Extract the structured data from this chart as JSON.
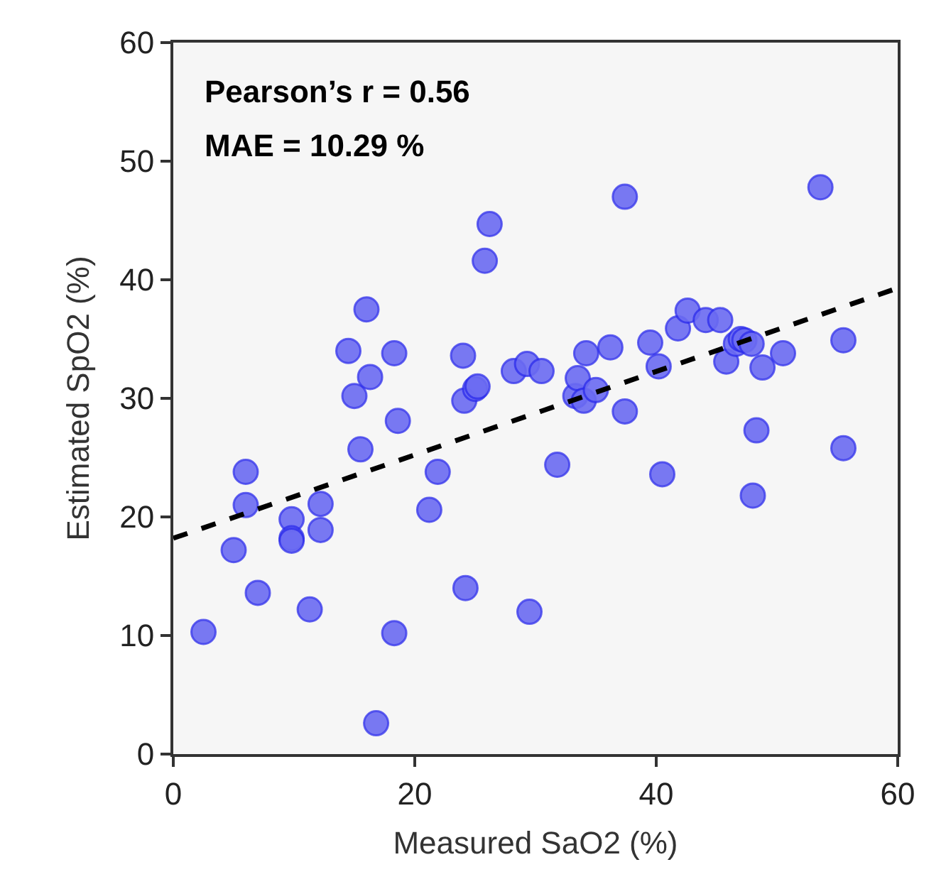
{
  "chart_data": {
    "type": "scatter",
    "xlabel": "Measured SaO2 (%)",
    "ylabel": "Estimated SpO2 (%)",
    "xlim": [
      0,
      60
    ],
    "xticks": [
      0,
      20,
      40,
      60
    ],
    "ylim": [
      0,
      60
    ],
    "yticks": [
      0,
      10,
      20,
      30,
      40,
      50,
      60
    ],
    "grid": false,
    "annotations": [
      "Pearson’s r = 0.56",
      "MAE = 10.29 %"
    ],
    "series": [
      {
        "color": "#6b6bf2",
        "marker": "circle",
        "x": [
          2.5,
          5,
          6,
          6,
          7,
          9.8,
          9.8,
          9.8,
          11.3,
          12.2,
          12.2,
          14.5,
          15,
          15.5,
          16,
          16.3,
          16.8,
          18.3,
          18.3,
          18.6,
          21.2,
          21.9,
          24,
          24.1,
          24.2,
          25,
          25.2,
          25.8,
          26.2,
          28.2,
          29.3,
          29.5,
          30.5,
          31.8,
          33.3,
          33.5,
          34,
          34.2,
          35,
          36.2,
          37.4,
          37.4,
          39.5,
          40.2,
          40.5,
          41.8,
          42.6,
          44.1,
          45.3,
          45.8,
          46.6,
          47,
          47.3,
          47.9,
          48,
          48.3,
          48.8,
          50.5,
          53.6,
          55.5,
          55.5
        ],
        "values": [
          10.3,
          17.2,
          21,
          23.8,
          13.6,
          19.8,
          18.2,
          18,
          12.2,
          21.1,
          18.9,
          34,
          30.2,
          25.7,
          37.5,
          31.8,
          2.6,
          33.8,
          10.2,
          28.1,
          20.6,
          23.8,
          33.6,
          29.8,
          14,
          30.8,
          31,
          41.6,
          44.7,
          32.3,
          32.9,
          12,
          32.3,
          24.4,
          30.2,
          31.7,
          29.8,
          33.8,
          30.7,
          34.3,
          47,
          28.9,
          34.7,
          32.7,
          23.6,
          35.9,
          37.4,
          36.6,
          36.6,
          33.1,
          34.6,
          35,
          34.9,
          34.6,
          21.8,
          27.3,
          32.6,
          33.8,
          47.8,
          34.9,
          25.8
        ]
      },
      {
        "type": "line",
        "color": "#000000",
        "line_style": "dashed",
        "marker": "none",
        "x": [
          0,
          60
        ],
        "values": [
          18.2,
          39.3
        ]
      }
    ]
  }
}
